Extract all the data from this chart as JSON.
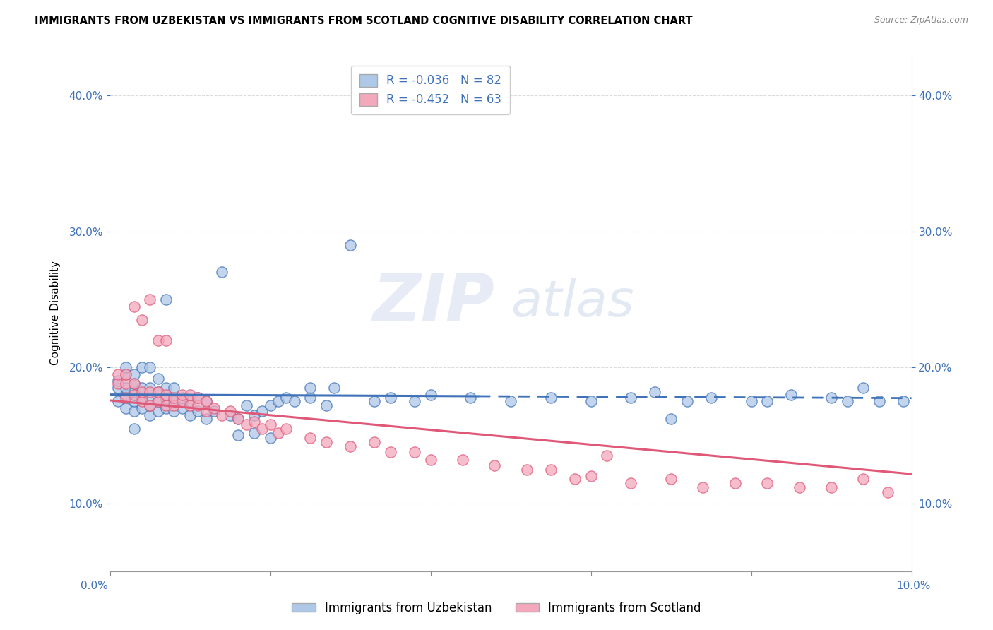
{
  "title": "IMMIGRANTS FROM UZBEKISTAN VS IMMIGRANTS FROM SCOTLAND COGNITIVE DISABILITY CORRELATION CHART",
  "source": "Source: ZipAtlas.com",
  "ylabel": "Cognitive Disability",
  "xmin": 0.0,
  "xmax": 0.1,
  "ymin": 0.05,
  "ymax": 0.43,
  "blue_R": -0.036,
  "blue_N": 82,
  "pink_R": -0.452,
  "pink_N": 63,
  "blue_color": "#aec8e8",
  "pink_color": "#f4a8bc",
  "blue_line_color": "#3f72b8",
  "pink_line_color": "#e05878",
  "blue_label": "Immigrants from Uzbekistan",
  "pink_label": "Immigrants from Scotland",
  "title_fontsize": 10.5,
  "source_fontsize": 9,
  "blue_scatter_x": [
    0.001,
    0.001,
    0.001,
    0.002,
    0.002,
    0.002,
    0.002,
    0.002,
    0.003,
    0.003,
    0.003,
    0.003,
    0.003,
    0.004,
    0.004,
    0.004,
    0.004,
    0.005,
    0.005,
    0.005,
    0.005,
    0.005,
    0.006,
    0.006,
    0.006,
    0.006,
    0.007,
    0.007,
    0.007,
    0.007,
    0.008,
    0.008,
    0.008,
    0.009,
    0.009,
    0.01,
    0.01,
    0.011,
    0.011,
    0.012,
    0.012,
    0.013,
    0.014,
    0.015,
    0.016,
    0.017,
    0.018,
    0.019,
    0.02,
    0.021,
    0.022,
    0.023,
    0.025,
    0.027,
    0.03,
    0.033,
    0.035,
    0.038,
    0.04,
    0.045,
    0.05,
    0.055,
    0.06,
    0.065,
    0.068,
    0.07,
    0.072,
    0.075,
    0.08,
    0.082,
    0.085,
    0.09,
    0.092,
    0.094,
    0.096,
    0.099,
    0.025,
    0.028,
    0.016,
    0.018,
    0.02,
    0.003
  ],
  "blue_scatter_y": [
    0.175,
    0.185,
    0.19,
    0.17,
    0.18,
    0.185,
    0.195,
    0.2,
    0.168,
    0.175,
    0.182,
    0.188,
    0.195,
    0.17,
    0.178,
    0.185,
    0.2,
    0.165,
    0.172,
    0.178,
    0.185,
    0.2,
    0.168,
    0.175,
    0.182,
    0.192,
    0.17,
    0.177,
    0.185,
    0.25,
    0.168,
    0.175,
    0.185,
    0.17,
    0.178,
    0.165,
    0.175,
    0.168,
    0.178,
    0.162,
    0.175,
    0.168,
    0.27,
    0.165,
    0.162,
    0.172,
    0.165,
    0.168,
    0.172,
    0.175,
    0.178,
    0.175,
    0.178,
    0.172,
    0.29,
    0.175,
    0.178,
    0.175,
    0.18,
    0.178,
    0.175,
    0.178,
    0.175,
    0.178,
    0.182,
    0.162,
    0.175,
    0.178,
    0.175,
    0.175,
    0.18,
    0.178,
    0.175,
    0.185,
    0.175,
    0.175,
    0.185,
    0.185,
    0.15,
    0.152,
    0.148,
    0.155
  ],
  "pink_scatter_x": [
    0.001,
    0.001,
    0.002,
    0.002,
    0.002,
    0.003,
    0.003,
    0.003,
    0.004,
    0.004,
    0.004,
    0.005,
    0.005,
    0.005,
    0.006,
    0.006,
    0.006,
    0.007,
    0.007,
    0.007,
    0.008,
    0.008,
    0.009,
    0.009,
    0.01,
    0.01,
    0.011,
    0.011,
    0.012,
    0.012,
    0.013,
    0.014,
    0.015,
    0.016,
    0.017,
    0.018,
    0.019,
    0.02,
    0.021,
    0.022,
    0.025,
    0.027,
    0.03,
    0.033,
    0.035,
    0.038,
    0.04,
    0.044,
    0.048,
    0.052,
    0.055,
    0.058,
    0.06,
    0.062,
    0.065,
    0.07,
    0.074,
    0.078,
    0.082,
    0.086,
    0.09,
    0.094,
    0.097
  ],
  "pink_scatter_y": [
    0.188,
    0.195,
    0.178,
    0.188,
    0.195,
    0.18,
    0.188,
    0.245,
    0.175,
    0.182,
    0.235,
    0.172,
    0.182,
    0.25,
    0.175,
    0.182,
    0.22,
    0.172,
    0.18,
    0.22,
    0.172,
    0.178,
    0.175,
    0.18,
    0.172,
    0.18,
    0.172,
    0.178,
    0.168,
    0.175,
    0.17,
    0.165,
    0.168,
    0.162,
    0.158,
    0.16,
    0.155,
    0.158,
    0.152,
    0.155,
    0.148,
    0.145,
    0.142,
    0.145,
    0.138,
    0.138,
    0.132,
    0.132,
    0.128,
    0.125,
    0.125,
    0.118,
    0.12,
    0.135,
    0.115,
    0.118,
    0.112,
    0.115,
    0.115,
    0.112,
    0.112,
    0.118,
    0.108
  ]
}
